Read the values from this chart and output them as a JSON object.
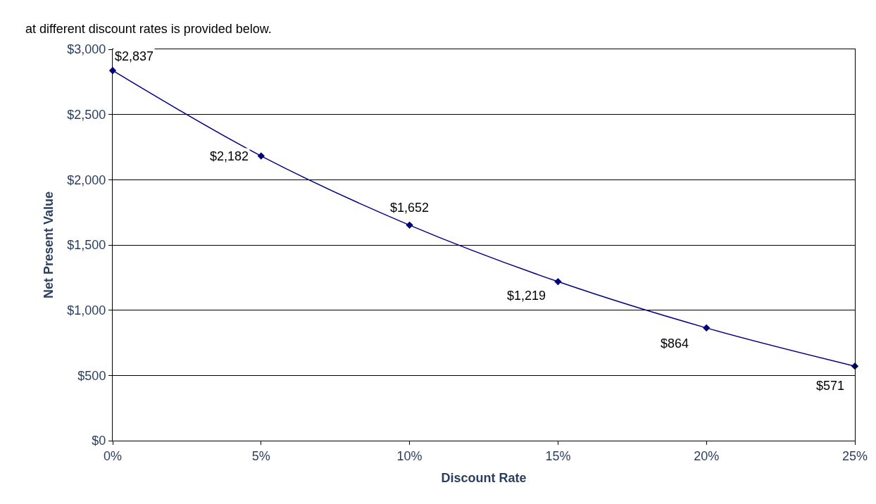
{
  "chart_data": {
    "type": "line",
    "xlabel": "Discount Rate",
    "ylabel": "Net Present Value",
    "annotations": [
      "at different discount rates is provided below."
    ],
    "x": [
      0,
      5,
      10,
      15,
      20,
      25
    ],
    "series": [
      {
        "color": "#000080",
        "values": [
          2837,
          2182,
          1652,
          1219,
          864,
          571
        ],
        "value_labels": [
          "$2,837",
          "$2,182",
          "$1,652",
          "$1,219",
          "$864",
          "$571"
        ]
      }
    ],
    "xlim": [
      0,
      25
    ],
    "xticks": [
      {
        "value": 0,
        "label": "0%"
      },
      {
        "value": 5,
        "label": "5%"
      },
      {
        "value": 10,
        "label": "10%"
      },
      {
        "value": 15,
        "label": "15%"
      },
      {
        "value": 20,
        "label": "20%"
      },
      {
        "value": 25,
        "label": "25%"
      }
    ],
    "ylim": [
      0,
      3000
    ],
    "yticks": [
      {
        "value": 0,
        "label": "$0"
      },
      {
        "value": 500,
        "label": "$500"
      },
      {
        "value": 1000,
        "label": "$1,000"
      },
      {
        "value": 1500,
        "label": "$1,500"
      },
      {
        "value": 2000,
        "label": "$2,000"
      },
      {
        "value": 2500,
        "label": "$2,500"
      },
      {
        "value": 3000,
        "label": "$3,000"
      }
    ],
    "grid": "y",
    "marker": "diamond",
    "line_style": "solid"
  }
}
